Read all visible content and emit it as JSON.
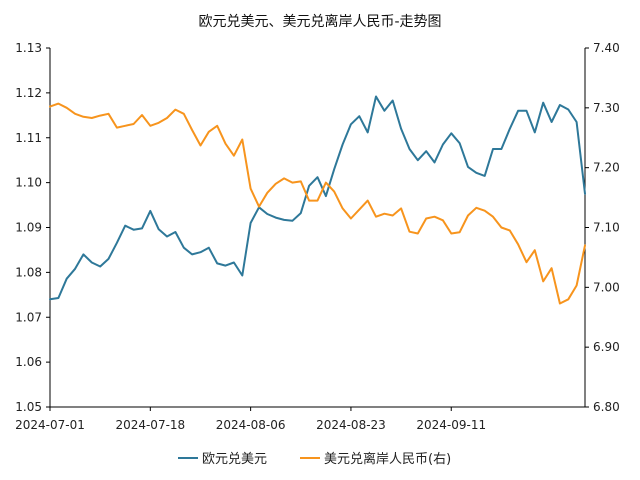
{
  "chart_data": {
    "type": "line",
    "title": "欧元兑美元、美元兑离岸人民币-走势图",
    "x_ticks": [
      "2024-07-01",
      "2024-07-18",
      "2024-08-06",
      "2024-08-23",
      "2024-09-11"
    ],
    "y_left": {
      "ylim": [
        1.05,
        1.13
      ],
      "ticks": [
        "1.05",
        "1.06",
        "1.07",
        "1.08",
        "1.09",
        "1.10",
        "1.11",
        "1.12",
        "1.13"
      ]
    },
    "y_right": {
      "ylim": [
        6.8,
        7.4
      ],
      "ticks": [
        "6.80",
        "6.90",
        "7.00",
        "7.10",
        "7.20",
        "7.30",
        "7.40"
      ]
    },
    "grid": false,
    "legend_position": "bottom",
    "series": [
      {
        "name": "欧元兑美元",
        "axis": "left",
        "color": "#2E7899",
        "values": [
          1.074,
          1.0743,
          1.0786,
          1.0808,
          1.084,
          1.0822,
          1.0813,
          1.083,
          1.0866,
          1.0904,
          1.0895,
          1.0898,
          1.0937,
          1.0896,
          1.088,
          1.089,
          1.0855,
          1.084,
          1.0845,
          1.0855,
          1.082,
          1.0815,
          1.0822,
          1.0793,
          1.091,
          1.0945,
          1.093,
          1.0922,
          1.0917,
          1.0915,
          1.0932,
          1.0993,
          1.1012,
          1.097,
          1.103,
          1.1085,
          1.113,
          1.1148,
          1.1112,
          1.1192,
          1.116,
          1.1183,
          1.112,
          1.1075,
          1.105,
          1.107,
          1.1045,
          1.1085,
          1.111,
          1.1088,
          1.1035,
          1.1022,
          1.1015,
          1.1075,
          1.1075,
          1.112,
          1.116,
          1.116,
          1.1112,
          1.1178,
          1.1135,
          1.1173,
          1.1163,
          1.1135,
          1.0975
        ]
      },
      {
        "name": "美元兑离岸人民币(右)",
        "axis": "right",
        "color": "#F7941D",
        "values": [
          7.302,
          7.307,
          7.3,
          7.29,
          7.285,
          7.283,
          7.287,
          7.29,
          7.267,
          7.27,
          7.273,
          7.288,
          7.27,
          7.275,
          7.283,
          7.297,
          7.29,
          7.263,
          7.237,
          7.26,
          7.27,
          7.24,
          7.22,
          7.247,
          7.165,
          7.135,
          7.158,
          7.173,
          7.182,
          7.175,
          7.177,
          7.145,
          7.145,
          7.175,
          7.16,
          7.132,
          7.115,
          7.13,
          7.145,
          7.118,
          7.123,
          7.12,
          7.132,
          7.093,
          7.09,
          7.115,
          7.118,
          7.112,
          7.09,
          7.092,
          7.12,
          7.133,
          7.128,
          7.118,
          7.1,
          7.095,
          7.072,
          7.042,
          7.062,
          7.01,
          7.032,
          6.973,
          6.98,
          7.003,
          7.07
        ]
      }
    ]
  }
}
